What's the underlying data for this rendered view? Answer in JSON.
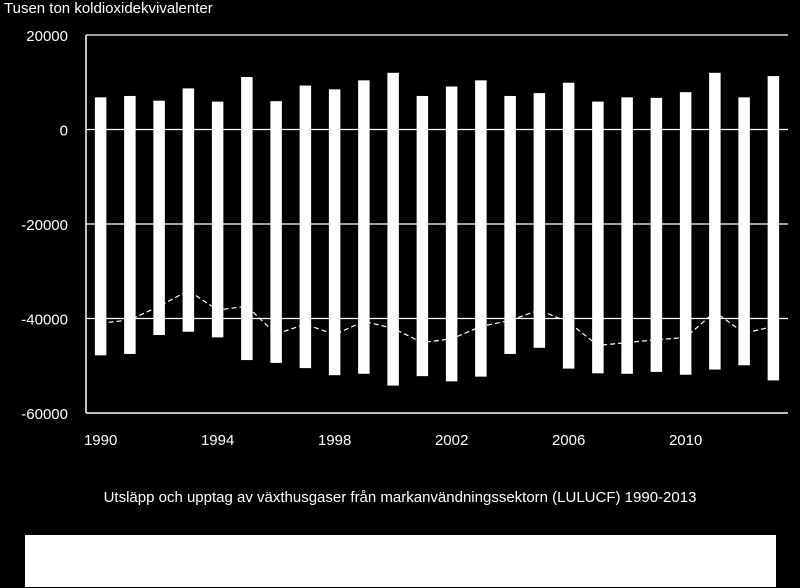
{
  "chart_data": {
    "type": "bar",
    "title": "",
    "ylabel": "Tusen ton koldioxidekvivalenter",
    "caption": "Utsläpp och upptag av växthusgaser från markanvändningssektorn (LULUCF) 1990-2013",
    "ylim": [
      -60000,
      20000
    ],
    "yticks": [
      20000,
      0,
      -20000,
      -40000,
      -60000
    ],
    "xtick_labels": [
      "1990",
      "1994",
      "1998",
      "2002",
      "2006",
      "2010"
    ],
    "x": [
      1990,
      1991,
      1992,
      1993,
      1994,
      1995,
      1996,
      1997,
      1998,
      1999,
      2000,
      2001,
      2002,
      2003,
      2004,
      2005,
      2006,
      2007,
      2008,
      2009,
      2010,
      2011,
      2012,
      2013
    ],
    "series": [
      {
        "kind": "bar",
        "values": [
          6800,
          7100,
          6100,
          8700,
          5900,
          11100,
          6000,
          9300,
          8500,
          10400,
          12000,
          7100,
          9100,
          10400,
          7100,
          7700,
          9900,
          5900,
          6800,
          6700,
          7900,
          12000,
          6800,
          11300
        ]
      },
      {
        "kind": "bar",
        "values": [
          -47800,
          -47500,
          -43500,
          -42800,
          -44000,
          -48800,
          -49400,
          -50500,
          -52000,
          -51700,
          -54200,
          -52200,
          -53300,
          -52300,
          -47500,
          -46200,
          -50600,
          -51600,
          -51700,
          -51300,
          -51900,
          -50800,
          -49900,
          -53100
        ]
      },
      {
        "kind": "line",
        "style": "dashed",
        "values": [
          -41000,
          -40300,
          -37400,
          -34100,
          -38200,
          -37400,
          -43300,
          -41200,
          -43400,
          -40600,
          -42100,
          -45100,
          -44300,
          -41700,
          -40400,
          -38200,
          -40800,
          -45700,
          -45100,
          -44500,
          -44000,
          -38600,
          -43100,
          -41700
        ]
      }
    ]
  },
  "colors": {
    "background": "#000000",
    "foreground": "#ffffff",
    "legend_box": "#ffffff"
  }
}
